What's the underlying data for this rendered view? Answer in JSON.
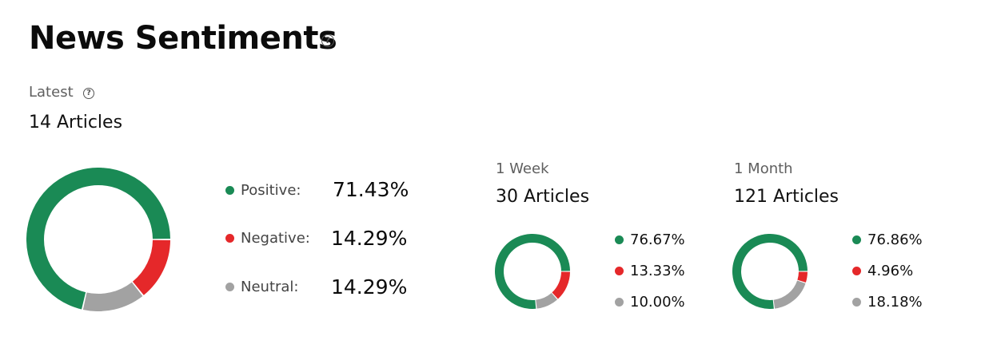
{
  "header": {
    "title": "News Sentiments",
    "help_icon": "question-circle-icon"
  },
  "latest": {
    "label": "Latest",
    "count": "14 Articles",
    "donut": {
      "positive": 71.43,
      "negative": 14.29,
      "neutral": 14.29
    },
    "legend": [
      {
        "key": "positive",
        "label": "Positive:",
        "value": "71.43%"
      },
      {
        "key": "negative",
        "label": "Negative:",
        "value": "14.29%"
      },
      {
        "key": "neutral",
        "label": "Neutral:",
        "value": "14.29%"
      }
    ]
  },
  "week": {
    "label": "1 Week",
    "count": "30 Articles",
    "donut": {
      "positive": 76.67,
      "negative": 13.33,
      "neutral": 10.0
    },
    "legend": [
      {
        "key": "positive",
        "value": "76.67%"
      },
      {
        "key": "negative",
        "value": "13.33%"
      },
      {
        "key": "neutral",
        "value": "10.00%"
      }
    ]
  },
  "month": {
    "label": "1 Month",
    "count": "121 Articles",
    "donut": {
      "positive": 76.86,
      "negative": 4.96,
      "neutral": 18.18
    },
    "legend": [
      {
        "key": "positive",
        "value": "76.86%"
      },
      {
        "key": "negative",
        "value": "4.96%"
      },
      {
        "key": "neutral",
        "value": "18.18%"
      }
    ]
  },
  "colors": {
    "positive": "#1a8a55",
    "negative": "#e5282a",
    "neutral": "#a2a2a2"
  }
}
